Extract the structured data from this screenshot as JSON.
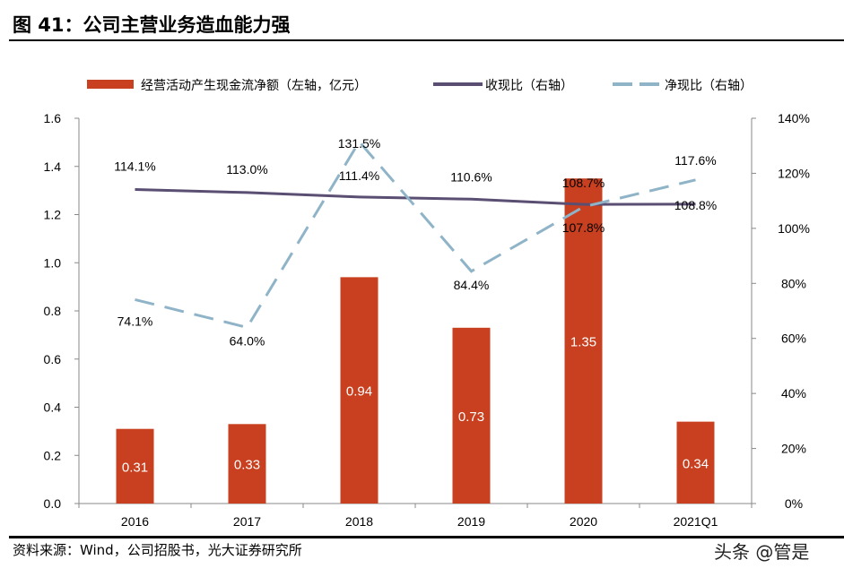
{
  "title": "图 41：公司主营业务造血能力强",
  "source": "资料来源：Wind，公司招股书，光大证券研究所",
  "watermark": "头条 @管是",
  "chart_data": {
    "type": "bar+line",
    "categories": [
      "2016",
      "2017",
      "2018",
      "2019",
      "2020",
      "2021Q1"
    ],
    "left_axis": {
      "range": [
        0,
        1.6
      ],
      "ticks": [
        "0.0",
        "0.2",
        "0.4",
        "0.6",
        "0.8",
        "1.0",
        "1.2",
        "1.4",
        "1.6"
      ]
    },
    "right_axis": {
      "range": [
        0,
        140
      ],
      "ticks": [
        "0%",
        "20%",
        "40%",
        "60%",
        "80%",
        "100%",
        "120%",
        "140%"
      ]
    },
    "legend_position": "top",
    "grid": false,
    "series": [
      {
        "name": "经营活动产生现金流净额（左轴，亿元）",
        "type": "bar",
        "axis": "left",
        "color": "#C8401F",
        "values": [
          0.31,
          0.33,
          0.94,
          0.73,
          1.35,
          0.34
        ],
        "labels": [
          "0.31",
          "0.33",
          "0.94",
          "0.73",
          "1.35",
          "0.34"
        ]
      },
      {
        "name": "收现比（右轴）",
        "type": "line",
        "axis": "right",
        "color": "#5B4E73",
        "values": [
          114.1,
          113.0,
          111.4,
          110.6,
          108.7,
          108.8
        ],
        "labels": [
          "114.1%",
          "113.0%",
          "111.4%",
          "110.6%",
          "108.7%",
          "108.8%"
        ]
      },
      {
        "name": "净现比（右轴）",
        "type": "line-dashed",
        "axis": "right",
        "color": "#8FB4C8",
        "values": [
          74.1,
          64.0,
          131.5,
          84.4,
          107.8,
          117.6
        ],
        "labels": [
          "74.1%",
          "64.0%",
          "131.5%",
          "84.4%",
          "107.8%",
          "117.6%"
        ]
      }
    ]
  }
}
